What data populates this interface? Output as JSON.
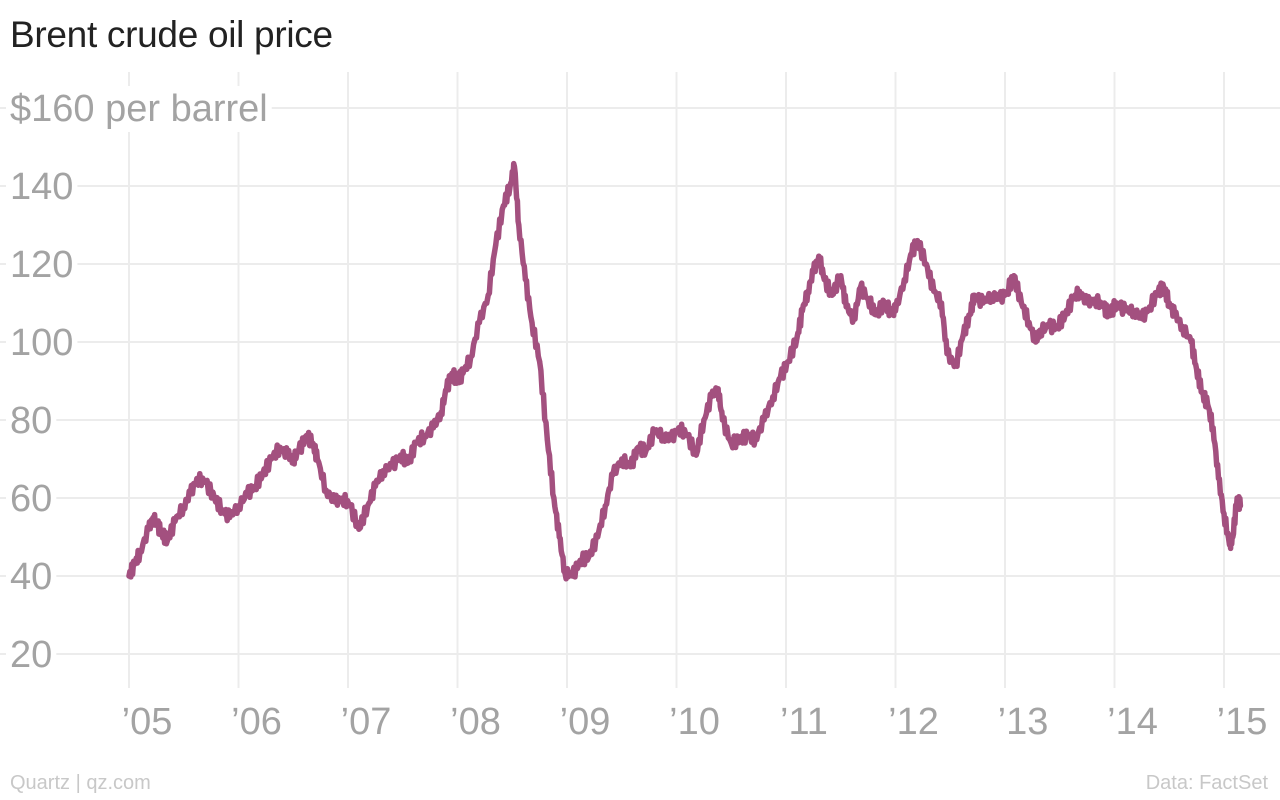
{
  "chart_data": {
    "type": "line",
    "title": "Brent crude oil price",
    "ylabel": "$160 per barrel",
    "xlabel": "",
    "ylim": [
      10,
      162
    ],
    "xlim": [
      2004.75,
      2015.25
    ],
    "y_ticks": [
      160,
      140,
      120,
      100,
      80,
      60,
      40,
      20
    ],
    "y_tick_labels": [
      "$160 per barrel",
      "140",
      "120",
      "100",
      "80",
      "60",
      "40",
      "20"
    ],
    "x_ticks": [
      2005,
      2006,
      2007,
      2008,
      2009,
      2010,
      2011,
      2012,
      2013,
      2014,
      2015
    ],
    "x_tick_labels": [
      "’05",
      "’06",
      "’07",
      "’08",
      "’09",
      "’10",
      "’11",
      "’12",
      "’13",
      "’14",
      "’15"
    ],
    "grid": true,
    "series": [
      {
        "color": "#a3507f",
        "x": [
          2005.0,
          2005.05,
          2005.1,
          2005.18,
          2005.22,
          2005.26,
          2005.3,
          2005.35,
          2005.42,
          2005.5,
          2005.56,
          2005.62,
          2005.7,
          2005.78,
          2005.85,
          2005.92,
          2006.0,
          2006.08,
          2006.15,
          2006.22,
          2006.3,
          2006.38,
          2006.45,
          2006.5,
          2006.55,
          2006.62,
          2006.68,
          2006.72,
          2006.8,
          2006.88,
          2006.95,
          2007.02,
          2007.1,
          2007.18,
          2007.25,
          2007.32,
          2007.4,
          2007.48,
          2007.55,
          2007.62,
          2007.7,
          2007.78,
          2007.85,
          2007.9,
          2007.95,
          2008.0,
          2008.05,
          2008.12,
          2008.2,
          2008.28,
          2008.35,
          2008.42,
          2008.48,
          2008.52,
          2008.56,
          2008.62,
          2008.68,
          2008.75,
          2008.82,
          2008.88,
          2008.93,
          2008.98,
          2009.05,
          2009.12,
          2009.2,
          2009.28,
          2009.35,
          2009.42,
          2009.5,
          2009.58,
          2009.65,
          2009.72,
          2009.8,
          2009.88,
          2009.95,
          2010.02,
          2010.1,
          2010.18,
          2010.25,
          2010.32,
          2010.38,
          2010.42,
          2010.5,
          2010.58,
          2010.65,
          2010.72,
          2010.8,
          2010.88,
          2010.95,
          2011.02,
          2011.1,
          2011.15,
          2011.2,
          2011.25,
          2011.3,
          2011.35,
          2011.42,
          2011.5,
          2011.55,
          2011.62,
          2011.68,
          2011.75,
          2011.82,
          2011.9,
          2011.95,
          2012.0,
          2012.08,
          2012.15,
          2012.2,
          2012.28,
          2012.35,
          2012.42,
          2012.47,
          2012.55,
          2012.62,
          2012.68,
          2012.72,
          2012.8,
          2012.88,
          2012.95,
          2013.02,
          2013.08,
          2013.15,
          2013.22,
          2013.28,
          2013.32,
          2013.4,
          2013.48,
          2013.55,
          2013.62,
          2013.68,
          2013.75,
          2013.82,
          2013.9,
          2013.95,
          2014.02,
          2014.1,
          2014.18,
          2014.25,
          2014.32,
          2014.4,
          2014.45,
          2014.5,
          2014.55,
          2014.62,
          2014.7,
          2014.75,
          2014.8,
          2014.85,
          2014.9,
          2014.95,
          2015.0,
          2015.05,
          2015.08,
          2015.12,
          2015.15
        ],
        "y": [
          40,
          43,
          46,
          52,
          55,
          53,
          51,
          49,
          54,
          58,
          61,
          65,
          64,
          60,
          57,
          55,
          58,
          61,
          63,
          66,
          70,
          73,
          71,
          70,
          72,
          76,
          74,
          70,
          62,
          59,
          60,
          58,
          52,
          58,
          63,
          67,
          68,
          71,
          69,
          74,
          76,
          78,
          82,
          88,
          92,
          90,
          92,
          96,
          105,
          112,
          125,
          135,
          140,
          145,
          130,
          116,
          105,
          95,
          75,
          60,
          50,
          41,
          40,
          44,
          45,
          50,
          58,
          66,
          70,
          68,
          73,
          72,
          77,
          76,
          75,
          78,
          76,
          71,
          80,
          86,
          88,
          80,
          74,
          75,
          76,
          75,
          80,
          86,
          91,
          95,
          101,
          108,
          113,
          118,
          122,
          116,
          112,
          117,
          109,
          106,
          114,
          111,
          107,
          110,
          108,
          108,
          116,
          123,
          126,
          120,
          113,
          110,
          97,
          94,
          102,
          107,
          112,
          110,
          112,
          111,
          113,
          117,
          110,
          105,
          100,
          103,
          104,
          104,
          107,
          111,
          113,
          110,
          111,
          109,
          107,
          110,
          108,
          108,
          106,
          109,
          113,
          114,
          110,
          107,
          104,
          100,
          93,
          87,
          84,
          78,
          65,
          56,
          48,
          50,
          60,
          58
        ]
      }
    ]
  },
  "footer": {
    "source_left": "Quartz | qz.com",
    "source_right": "Data: FactSet"
  }
}
